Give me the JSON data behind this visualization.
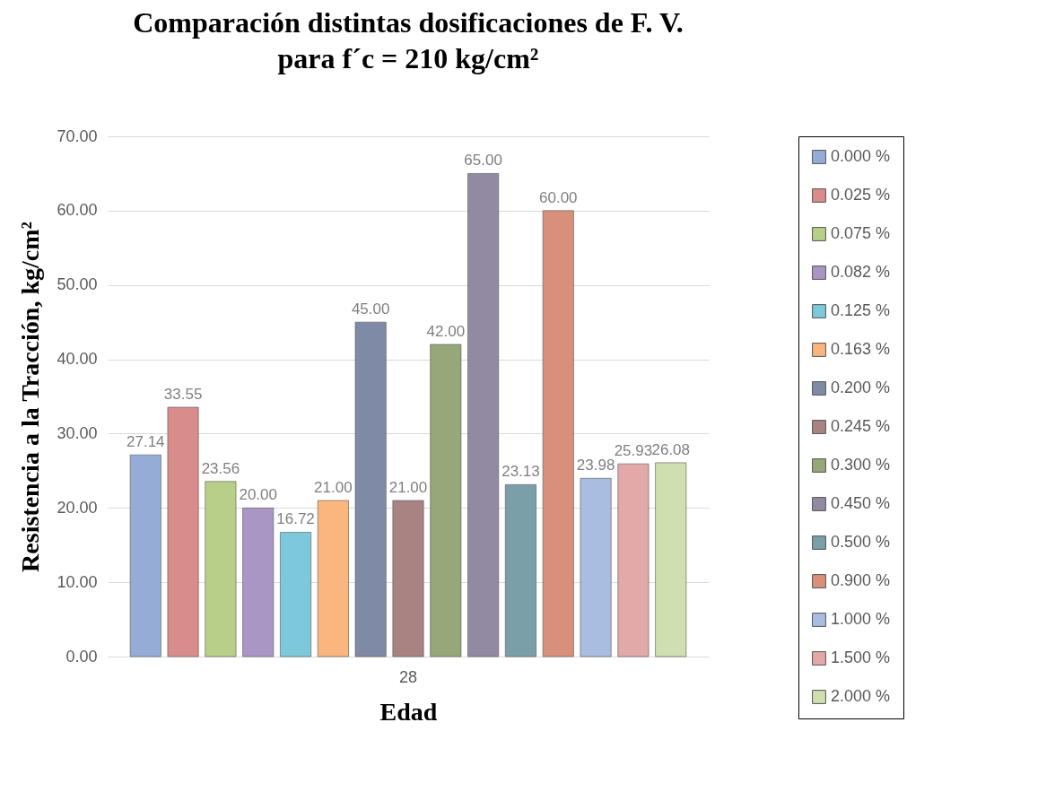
{
  "chart_data": {
    "type": "bar",
    "title": "Comparación distintas dosificaciones de F. V.\npara f´c = 210 kg/cm²",
    "xlabel": "Edad",
    "ylabel": "Resistencia a la Tracción, kg/cm²",
    "categories": [
      "28"
    ],
    "series": [
      {
        "name": "0.000 %",
        "color": "#95add6",
        "values": [
          27.14
        ],
        "value_labels": [
          "27.14"
        ]
      },
      {
        "name": "0.025 %",
        "color": "#d98c8c",
        "values": [
          33.55
        ],
        "value_labels": [
          "33.55"
        ]
      },
      {
        "name": "0.075 %",
        "color": "#b8cf8a",
        "values": [
          23.56
        ],
        "value_labels": [
          "23.56"
        ]
      },
      {
        "name": "0.082 %",
        "color": "#a996c4",
        "values": [
          20.0
        ],
        "value_labels": [
          "20.00"
        ]
      },
      {
        "name": "0.125 %",
        "color": "#7ec8dc",
        "values": [
          16.72
        ],
        "value_labels": [
          "16.72"
        ]
      },
      {
        "name": "0.163 %",
        "color": "#fbb57f",
        "values": [
          21.0
        ],
        "value_labels": [
          "21.00"
        ]
      },
      {
        "name": "0.200 %",
        "color": "#7f8ba6",
        "values": [
          45.0
        ],
        "value_labels": [
          "45.00"
        ]
      },
      {
        "name": "0.245 %",
        "color": "#a98282",
        "values": [
          21.0
        ],
        "value_labels": [
          "21.00"
        ]
      },
      {
        "name": "0.300 %",
        "color": "#96a77a",
        "values": [
          42.0
        ],
        "value_labels": [
          "42.00"
        ]
      },
      {
        "name": "0.450 %",
        "color": "#928aa3",
        "values": [
          65.0
        ],
        "value_labels": [
          "65.00"
        ]
      },
      {
        "name": "0.500 %",
        "color": "#7b9fa8",
        "values": [
          23.13
        ],
        "value_labels": [
          "23.13"
        ]
      },
      {
        "name": "0.900 %",
        "color": "#d9907a",
        "values": [
          60.0
        ],
        "value_labels": [
          "60.00"
        ]
      },
      {
        "name": "1.000 %",
        "color": "#a9bde0",
        "values": [
          23.98
        ],
        "value_labels": [
          "23.98"
        ]
      },
      {
        "name": "1.500 %",
        "color": "#e3a9a9",
        "values": [
          25.93
        ],
        "value_labels": [
          "25.93"
        ]
      },
      {
        "name": "2.000 %",
        "color": "#cfdfb0",
        "values": [
          26.08
        ],
        "value_labels": [
          "26.08"
        ]
      }
    ],
    "ylim": [
      0,
      70
    ],
    "yticks": [
      {
        "value": 0,
        "label": "0.00"
      },
      {
        "value": 10,
        "label": "10.00"
      },
      {
        "value": 20,
        "label": "20.00"
      },
      {
        "value": 30,
        "label": "30.00"
      },
      {
        "value": 40,
        "label": "40.00"
      },
      {
        "value": 50,
        "label": "50.00"
      },
      {
        "value": 60,
        "label": "60.00"
      },
      {
        "value": 70,
        "label": "70.00"
      }
    ],
    "grid": "y",
    "legend": "right"
  }
}
